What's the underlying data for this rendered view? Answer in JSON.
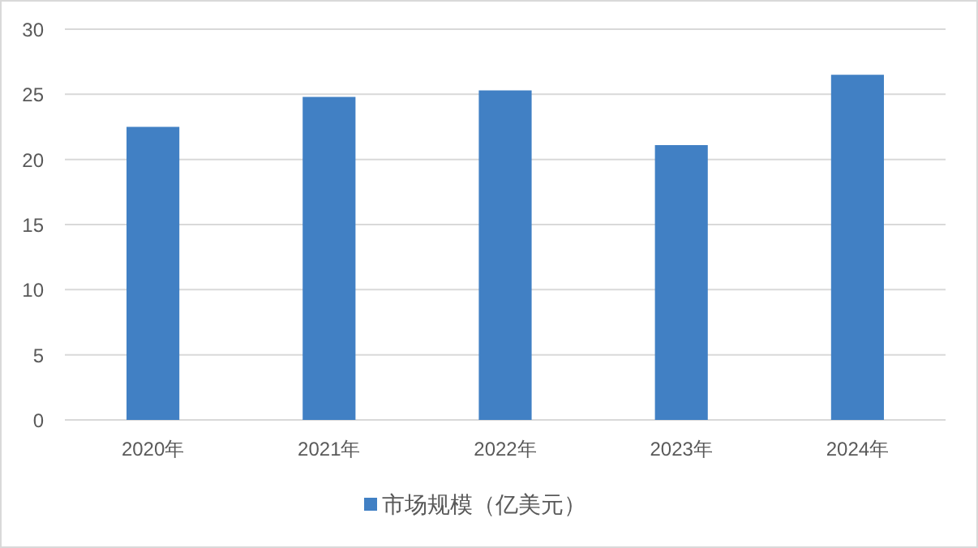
{
  "chart_data": {
    "type": "bar",
    "categories": [
      "2020年",
      "2021年",
      "2022年",
      "2023年",
      "2024年"
    ],
    "series": [
      {
        "name": "市场规模（亿美元）",
        "color": "#4180c4",
        "values": [
          22.5,
          24.8,
          25.3,
          21.1,
          26.5
        ]
      }
    ],
    "ylim": [
      0,
      30
    ],
    "yticks": [
      0,
      5,
      10,
      15,
      20,
      25,
      30
    ],
    "grid": "y",
    "legend": "bottom"
  }
}
